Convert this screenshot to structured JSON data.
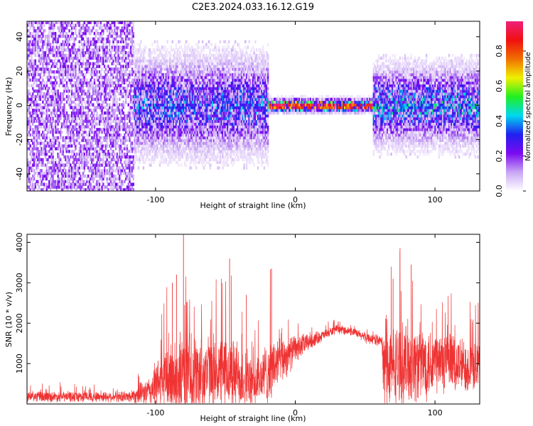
{
  "title": "C2E3.2024.033.16.12.G19",
  "chart_data": [
    {
      "type": "heatmap",
      "xlabel": "Height of straight line (km)",
      "ylabel": "Frequency (Hz)",
      "xlim": [
        -192,
        132
      ],
      "ylim": [
        -50,
        49
      ],
      "xticks": [
        -100,
        0,
        100
      ],
      "yticks": [
        -40,
        -20,
        0,
        20,
        40
      ],
      "grid": false,
      "colorbar": {
        "label": "Normalized spectral amplitude",
        "range": [
          0,
          0.97
        ],
        "ticks": [
          "0.0",
          "0.2",
          "0.4",
          "0.6",
          "0.8"
        ],
        "colors": [
          "#ffffff",
          "#c9a6f4",
          "#7b0af0",
          "#2020f0",
          "#00d8f0",
          "#20f020",
          "#f0f000",
          "#f07000",
          "#f01010",
          "#f0207a"
        ]
      },
      "regions": [
        {
          "x": [
            -192,
            -116
          ],
          "freq_spread": 50,
          "amplitude": 0.12,
          "note": "broadband noise"
        },
        {
          "x": [
            -116,
            -20
          ],
          "freq_spread": 15,
          "amplitude": 0.3
        },
        {
          "x": [
            -20,
            55
          ],
          "freq_spread": 2,
          "amplitude": 0.85
        },
        {
          "x": [
            55,
            132
          ],
          "freq_spread": 12,
          "amplitude": 0.35
        }
      ]
    },
    {
      "type": "line",
      "xlabel": "Height of straight line (km)",
      "ylabel": "SNR (10 * v/v)",
      "xlim": [
        -192,
        132
      ],
      "ylim": [
        0,
        4200
      ],
      "xticks": [
        -100,
        0,
        100
      ],
      "yticks": [
        1000,
        2000,
        3000,
        4000
      ],
      "grid": false,
      "series": [
        {
          "color": "#ef3333",
          "envelope": {
            "x": [
              -192,
              -120,
              -105,
              -95,
              -80,
              -60,
              -40,
              -30,
              -20,
              -10,
              0,
              10,
              20,
              30,
              40,
              50,
              62,
              63,
              80,
              100,
              120,
              132
            ],
            "baseline": [
              180,
              180,
              300,
              600,
              700,
              800,
              700,
              450,
              800,
              1100,
              1350,
              1550,
              1700,
              1850,
              1800,
              1650,
              1550,
              900,
              1000,
              1050,
              950,
              950
            ],
            "noise": [
              150,
              150,
              400,
              900,
              1200,
              1100,
              1000,
              600,
              900,
              700,
              400,
              250,
              150,
              120,
              120,
              150,
              150,
              1100,
              1200,
              1000,
              800,
              700
            ]
          },
          "peaks": [
            {
              "x": -80,
              "y": 4200
            },
            {
              "x": -85,
              "y": 3200
            },
            {
              "x": -47,
              "y": 3600
            },
            {
              "x": -17,
              "y": 3350
            },
            {
              "x": -88,
              "y": 3000
            },
            {
              "x": 83,
              "y": 3450
            },
            {
              "x": 70,
              "y": 3100
            },
            {
              "x": -35,
              "y": 2700
            }
          ]
        }
      ]
    }
  ]
}
